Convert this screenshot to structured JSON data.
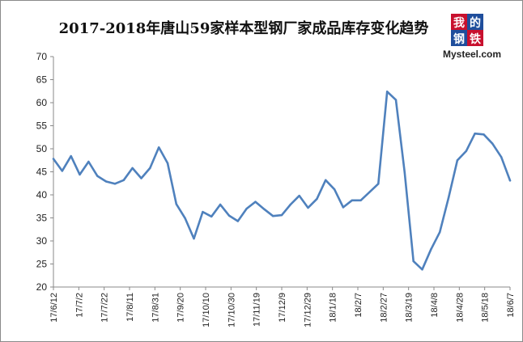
{
  "chart_data": {
    "type": "line",
    "title": "2017-2018年唐山59家样本型钢厂家成品库存变化趋势",
    "xlabel": "",
    "ylabel": "",
    "ylim": [
      20,
      70
    ],
    "yticks": [
      20,
      25,
      30,
      35,
      40,
      45,
      50,
      55,
      60,
      65,
      70
    ],
    "grid": false,
    "legend": "none",
    "line_color": "#4f81bd",
    "x_tick_labels": [
      "17/6/12",
      "17/7/2",
      "17/7/22",
      "17/8/11",
      "17/8/31",
      "17/9/20",
      "17/10/10",
      "17/10/30",
      "17/11/19",
      "17/12/9",
      "17/12/29",
      "18/1/18",
      "18/2/7",
      "18/2/27",
      "18/3/19",
      "18/4/8",
      "18/4/28",
      "18/5/18",
      "18/6/7"
    ],
    "x": [
      "17/6/12",
      "17/6/15",
      "17/6/22",
      "17/6/29",
      "17/7/6",
      "17/7/13",
      "17/7/20",
      "17/7/27",
      "17/8/3",
      "17/8/10",
      "17/8/17",
      "17/8/24",
      "17/8/31",
      "17/9/7",
      "17/9/14",
      "17/9/21",
      "17/9/28",
      "17/10/5",
      "17/10/12",
      "17/10/19",
      "17/10/26",
      "17/11/2",
      "17/11/9",
      "17/11/16",
      "17/11/23",
      "17/11/30",
      "17/12/7",
      "17/12/14",
      "17/12/21",
      "17/12/28",
      "18/1/4",
      "18/1/11",
      "18/1/18",
      "18/1/25",
      "18/2/1",
      "18/2/8",
      "18/2/15",
      "18/2/22",
      "18/3/1",
      "18/3/8",
      "18/3/15",
      "18/3/22",
      "18/3/29",
      "18/4/5",
      "18/4/12",
      "18/4/19",
      "18/4/26",
      "18/5/3",
      "18/5/10",
      "18/5/17",
      "18/5/24",
      "18/5/31",
      "18/6/7"
    ],
    "series": [
      {
        "values": [
          47.8,
          45.2,
          48.4,
          44.4,
          47.2,
          44.1,
          42.9,
          42.4,
          43.2,
          45.8,
          43.6,
          45.8,
          50.3,
          46.9,
          38.0,
          34.9,
          30.5,
          36.3,
          35.3,
          37.9,
          35.5,
          34.3,
          37.0,
          38.5,
          36.9,
          35.4,
          35.6,
          37.9,
          39.8,
          37.2,
          39.1,
          43.2,
          41.2,
          37.3,
          38.8,
          38.8,
          40.6,
          42.4,
          62.4,
          60.6,
          44.9,
          25.6,
          23.8,
          28.2,
          31.9,
          39.4,
          47.5,
          49.5,
          53.3,
          53.1,
          51.1,
          48.2,
          43.1
        ]
      }
    ]
  },
  "logo": {
    "char1": "我",
    "char2": "的",
    "char3": "钢",
    "char4": "铁",
    "text": "Mysteel.com"
  }
}
